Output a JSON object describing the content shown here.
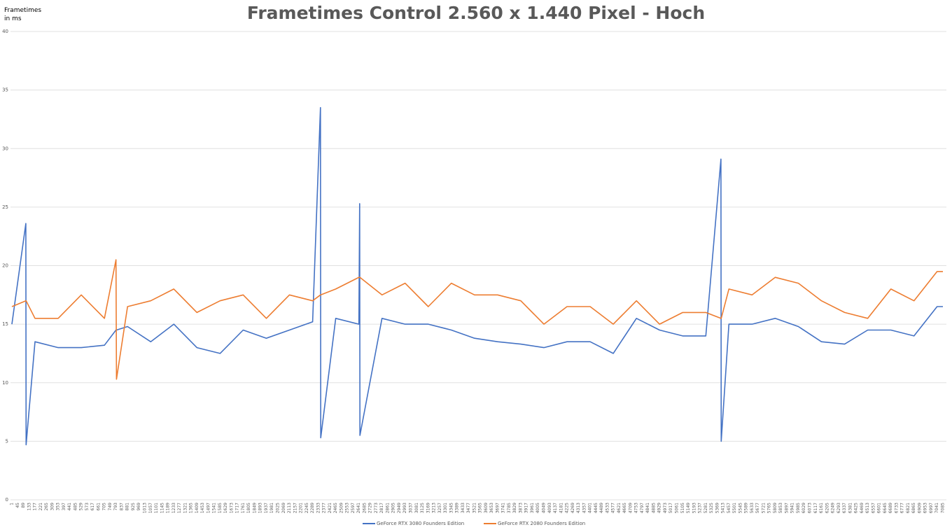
{
  "chart_data": {
    "type": "line",
    "title": "Frametimes Control 2.560 x 1.440 Pixel - Hoch",
    "y_label": "Frametimes in ms",
    "x": [
      1,
      107,
      109,
      177,
      353,
      529,
      705,
      793,
      797,
      881,
      1057,
      1233,
      1409,
      1585,
      1761,
      1937,
      2113,
      2289,
      2349,
      2351,
      2465,
      2641,
      2647,
      2649,
      2817,
      2993,
      3169,
      3345,
      3521,
      3697,
      3873,
      4049,
      4225,
      4401,
      4577,
      4753,
      4929,
      5105,
      5281,
      5396,
      5398,
      5457,
      5633,
      5809,
      5985,
      6161,
      6337,
      6513,
      6689,
      6865,
      7041,
      7085
    ],
    "series": [
      {
        "name": "GeForce RTX 3080 Founders Edition",
        "color": "#4472c4",
        "values": [
          15,
          23.6,
          4.7,
          13.5,
          13,
          13,
          13.2,
          14.5,
          14.5,
          14.8,
          13.5,
          15,
          13,
          12.5,
          14.5,
          13.8,
          14.5,
          15.2,
          33.5,
          5.3,
          15.5,
          15,
          25.3,
          5.5,
          15.5,
          15,
          15,
          14.5,
          13.8,
          13.5,
          13.3,
          13,
          13.5,
          13.5,
          12.5,
          15.5,
          14.5,
          14,
          14,
          29.1,
          5,
          15,
          15,
          15.5,
          14.8,
          13.5,
          13.3,
          14.5,
          14.5,
          14,
          16.5,
          16.5
        ]
      },
      {
        "name": "GeForce RTX 2080 Founders Edition",
        "color": "#ed7d31",
        "values": [
          16.5,
          17,
          17,
          15.5,
          15.5,
          17.5,
          15.5,
          20.5,
          10.3,
          16.5,
          17,
          18,
          16,
          17,
          17.5,
          15.5,
          17.5,
          17,
          17.5,
          17.5,
          18,
          19,
          19,
          19,
          17.5,
          18.5,
          16.5,
          18.5,
          17.5,
          17.5,
          17,
          15,
          16.5,
          16.5,
          15,
          17,
          15,
          16,
          16,
          15.5,
          15.5,
          18,
          17.5,
          19,
          18.5,
          17,
          16,
          15.5,
          18,
          17,
          19.5,
          19.5
        ]
      }
    ],
    "xlim": [
      1,
      7085
    ],
    "xticks": [
      1,
      45,
      89,
      133,
      177,
      221,
      265,
      309,
      353,
      397,
      441,
      485,
      529,
      573,
      617,
      661,
      705,
      749,
      793,
      837,
      881,
      925,
      969,
      1013,
      1057,
      1101,
      1145,
      1189,
      1233,
      1277,
      1321,
      1365,
      1409,
      1453,
      1497,
      1541,
      1585,
      1629,
      1673,
      1717,
      1761,
      1805,
      1849,
      1893,
      1937,
      1981,
      2025,
      2069,
      2113,
      2157,
      2201,
      2245,
      2289,
      2333,
      2377,
      2421,
      2465,
      2509,
      2553,
      2597,
      2641,
      2685,
      2729,
      2773,
      2817,
      2861,
      2905,
      2949,
      2993,
      3037,
      3081,
      3125,
      3169,
      3213,
      3257,
      3301,
      3345,
      3389,
      3433,
      3477,
      3521,
      3565,
      3609,
      3653,
      3697,
      3741,
      3785,
      3829,
      3873,
      3917,
      3961,
      4005,
      4049,
      4093,
      4137,
      4181,
      4225,
      4269,
      4313,
      4357,
      4401,
      4445,
      4489,
      4533,
      4577,
      4621,
      4665,
      4709,
      4753,
      4797,
      4841,
      4885,
      4929,
      4973,
      5017,
      5061,
      5105,
      5149,
      5193,
      5237,
      5281,
      5325,
      5369,
      5413,
      5457,
      5501,
      5545,
      5589,
      5633,
      5677,
      5721,
      5765,
      5809,
      5853,
      5897,
      5941,
      5985,
      6029,
      6073,
      6117,
      6161,
      6205,
      6249,
      6293,
      6337,
      6381,
      6425,
      6469,
      6513,
      6557,
      6601,
      6645,
      6689,
      6733,
      6777,
      6821,
      6865,
      6909,
      6953,
      6997,
      7041,
      7085
    ],
    "ylim": [
      0,
      40
    ],
    "yticks": [
      0,
      5,
      10,
      15,
      20,
      25,
      30,
      35,
      40
    ],
    "grid": true,
    "legend": "bottom"
  }
}
